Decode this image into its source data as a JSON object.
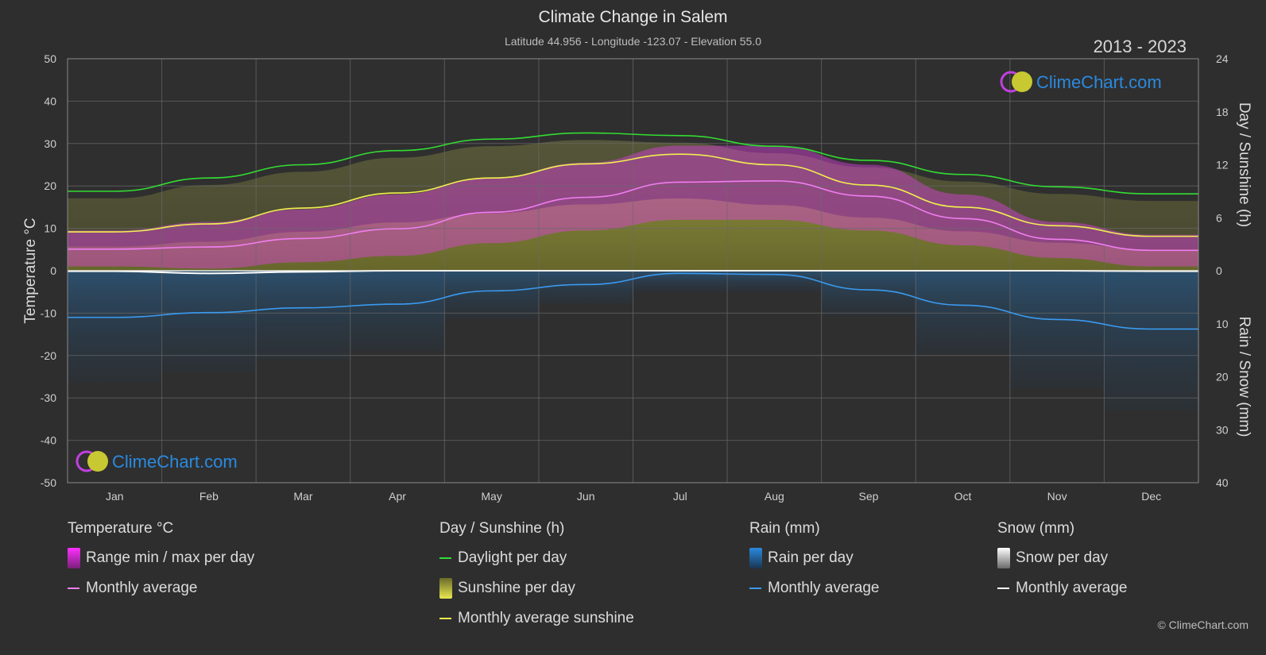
{
  "header": {
    "title": "Climate Change in Salem",
    "subtitle": "Latitude 44.956 - Longitude -123.07 - Elevation 55.0",
    "years": "2013 - 2023"
  },
  "watermark": {
    "text": "ClimeChart.com"
  },
  "copyright": "© ClimeChart.com",
  "colors": {
    "background": "#2e2e2e",
    "temp_range": "#e040e0",
    "temp_avg": "#f07ef0",
    "daylight": "#33dd33",
    "sunshine": "#c8c832",
    "sunshine_avg": "#f0f050",
    "rain": "#2a8ae0",
    "rain_avg": "#3a9af0",
    "snow": "#d0d0d0",
    "snow_avg": "#ffffff",
    "watermark_text": "#2a8ae0"
  },
  "legend": {
    "temperature": {
      "title": "Temperature °C",
      "range": "Range min / max per day",
      "avg": "Monthly average"
    },
    "sun": {
      "title": "Day / Sunshine (h)",
      "daylight": "Daylight per day",
      "sunshine": "Sunshine per day",
      "avg": "Monthly average sunshine"
    },
    "rain": {
      "title": "Rain (mm)",
      "per_day": "Rain per day",
      "avg": "Monthly average"
    },
    "snow": {
      "title": "Snow (mm)",
      "per_day": "Snow per day",
      "avg": "Monthly average"
    }
  },
  "chart_data": {
    "type": "line",
    "categories": [
      "Jan",
      "Feb",
      "Mar",
      "Apr",
      "May",
      "Jun",
      "Jul",
      "Aug",
      "Sep",
      "Oct",
      "Nov",
      "Dec"
    ],
    "y_left": {
      "label": "Temperature °C",
      "range": [
        -50,
        50
      ],
      "ticks": [
        50,
        40,
        30,
        20,
        10,
        0,
        -10,
        -20,
        -30,
        -40,
        -50
      ]
    },
    "y_right_top": {
      "label": "Day / Sunshine (h)",
      "range": [
        0,
        24
      ],
      "ticks": [
        24,
        18,
        12,
        6,
        0
      ]
    },
    "y_right_bottom": {
      "label": "Rain / Snow (mm)",
      "range": [
        0,
        40
      ],
      "ticks": [
        0,
        10,
        20,
        30,
        40
      ]
    },
    "grid": true,
    "series": [
      {
        "name": "Daylight per day",
        "axis": "hours",
        "values": [
          9.0,
          10.5,
          12.0,
          13.6,
          14.9,
          15.6,
          15.3,
          14.1,
          12.5,
          10.9,
          9.5,
          8.7
        ]
      },
      {
        "name": "Monthly average sunshine",
        "axis": "hours",
        "values": [
          4.4,
          5.3,
          7.1,
          8.8,
          10.5,
          12.1,
          13.2,
          12.0,
          9.7,
          7.2,
          5.1,
          3.9
        ]
      },
      {
        "name": "Monthly average",
        "kind": "temperature",
        "axis": "temperature",
        "values": [
          5.1,
          5.6,
          7.6,
          9.9,
          13.8,
          17.3,
          20.9,
          21.2,
          17.6,
          12.3,
          7.4,
          4.8
        ]
      },
      {
        "name": "Temp max per day",
        "axis": "temperature",
        "values": [
          9.5,
          11.5,
          14.5,
          18.0,
          22.0,
          25.5,
          29.5,
          29.5,
          25.0,
          18.0,
          11.5,
          8.5
        ]
      },
      {
        "name": "Temp min per day",
        "axis": "temperature",
        "values": [
          1.0,
          0.5,
          2.0,
          3.5,
          6.5,
          9.5,
          12.0,
          12.0,
          9.5,
          6.0,
          3.0,
          1.0
        ]
      },
      {
        "name": "Monthly average",
        "kind": "rain",
        "axis": "mm",
        "values": [
          8.8,
          7.9,
          7.0,
          6.3,
          3.8,
          2.6,
          0.5,
          0.7,
          3.6,
          6.5,
          9.2,
          11.0
        ]
      },
      {
        "name": "Monthly average",
        "kind": "snow",
        "axis": "mm",
        "values": [
          0.1,
          0.5,
          0.2,
          0.0,
          0.0,
          0.0,
          0.0,
          0.0,
          0.0,
          0.0,
          0.0,
          0.1
        ]
      }
    ]
  }
}
